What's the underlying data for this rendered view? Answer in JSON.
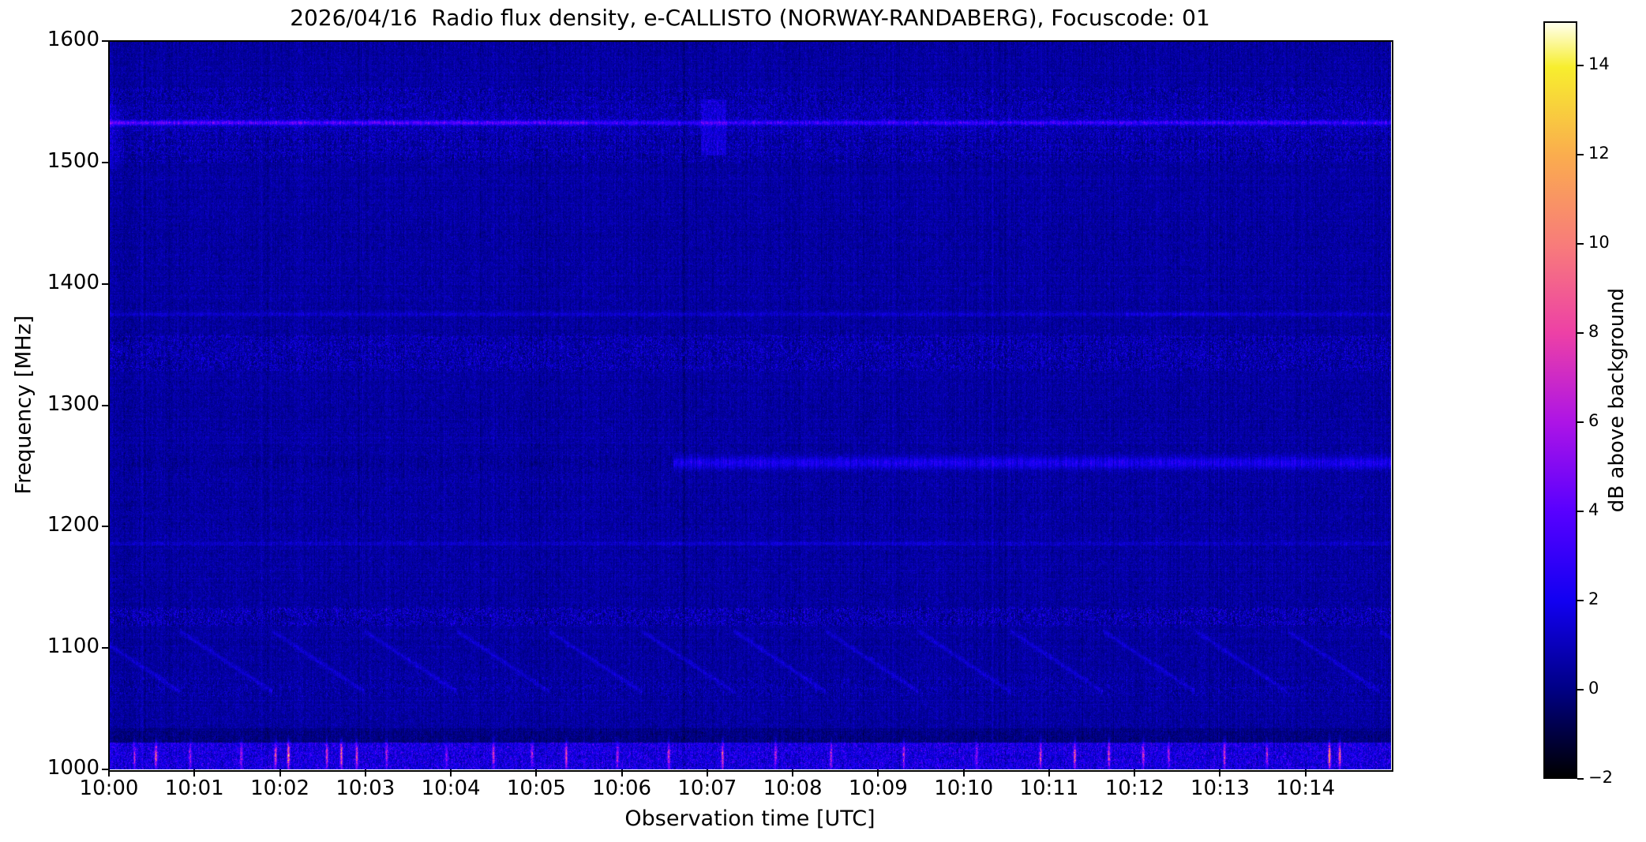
{
  "chart_data": {
    "type": "heatmap",
    "title": "2026/04/16  Radio flux density, e-CALLISTO (NORWAY-RANDABERG), Focuscode: 01",
    "xlabel": "Observation time [UTC]",
    "ylabel": "Frequency [MHz]",
    "colorbar_label": "dB above background",
    "x_tick_labels": [
      "10:00",
      "10:01",
      "10:02",
      "10:03",
      "10:04",
      "10:05",
      "10:06",
      "10:07",
      "10:08",
      "10:09",
      "10:10",
      "10:11",
      "10:12",
      "10:13",
      "10:14"
    ],
    "x_tick_minutes": [
      0,
      1,
      2,
      3,
      4,
      5,
      6,
      7,
      8,
      9,
      10,
      11,
      12,
      13,
      14
    ],
    "x_range_minutes": [
      0,
      15
    ],
    "y_tick_labels": [
      "1600",
      "1500",
      "1400",
      "1300",
      "1200",
      "1100",
      "1000"
    ],
    "y_tick_values": [
      1600,
      1500,
      1400,
      1300,
      1200,
      1100,
      1000
    ],
    "y_range_mhz": [
      1000,
      1600
    ],
    "value_range_db": [
      -2,
      15
    ],
    "colorbar_tick_labels": [
      "14",
      "12",
      "10",
      "8",
      "6",
      "4",
      "2",
      "0",
      "−2"
    ],
    "colorbar_tick_values": [
      14,
      12,
      10,
      8,
      6,
      4,
      2,
      0,
      -2
    ],
    "colormap_stops": [
      {
        "value": -2,
        "rgb": [
          0,
          0,
          0
        ]
      },
      {
        "value": 0,
        "rgb": [
          0,
          0,
          134
        ]
      },
      {
        "value": 2,
        "rgb": [
          18,
          0,
          242
        ]
      },
      {
        "value": 4,
        "rgb": [
          88,
          0,
          255
        ]
      },
      {
        "value": 6,
        "rgb": [
          173,
          20,
          230
        ]
      },
      {
        "value": 8,
        "rgb": [
          237,
          64,
          166
        ]
      },
      {
        "value": 10,
        "rgb": [
          248,
          124,
          122
        ]
      },
      {
        "value": 12,
        "rgb": [
          250,
          172,
          78
        ]
      },
      {
        "value": 14,
        "rgb": [
          247,
          238,
          46
        ]
      },
      {
        "value": 15,
        "rgb": [
          255,
          255,
          236
        ]
      }
    ],
    "base_level_db": 0.32,
    "noise_bands": [
      {
        "freq": [
          1500,
          1562
        ],
        "speckle": 1.8,
        "add": 0
      },
      {
        "freq": [
          1520,
          1546
        ],
        "speckle": 1.0,
        "add": 0.12
      },
      {
        "freq": [
          1328,
          1358
        ],
        "speckle": 2.0,
        "add": 0
      },
      {
        "freq": [
          1118,
          1133
        ],
        "speckle": 2.3,
        "add": 0
      },
      {
        "freq": [
          1060,
          1076
        ],
        "speckle": 1.4,
        "add": 0
      },
      {
        "freq": [
          1022,
          1034
        ],
        "speckle": 1.0,
        "add": -0.5
      },
      {
        "freq": [
          1000,
          1022
        ],
        "speckle": 2.6,
        "add": 1.0
      }
    ],
    "features": [
      {
        "type": "hline_split",
        "freq": 1532.6,
        "sigma": 1.4,
        "window": 5,
        "t_split": 5.6,
        "amp_before": 3.1,
        "amp_after": 2.25,
        "flicker": [
          0.65,
          0.7
        ]
      },
      {
        "type": "hline",
        "freq": 1375,
        "sigma": 1.2,
        "window": 3.5,
        "amp": 0.8,
        "flicker": [
          0.55,
          0.9
        ],
        "boost_t": [
          11.9,
          13.15
        ],
        "boost_amp": 0.8
      },
      {
        "type": "hline",
        "freq": 1186,
        "sigma": 1.1,
        "window": 3,
        "amp": 0.7,
        "flicker": [
          0.5,
          0.9
        ],
        "boost_t": [
          6.4,
          9.9
        ],
        "boost_amp": 0.3
      },
      {
        "type": "split_band",
        "freq": 1252.5,
        "sigma": 3.5,
        "window": 8,
        "t_split": 6.6,
        "amp_left": -0.45,
        "mottle_left": 0.55,
        "amp_right": 1.9,
        "flicker_right": [
          0.45,
          0.75
        ]
      },
      {
        "type": "chevrons",
        "f_start": 1114,
        "f_end": 1064,
        "period_min": 1.08,
        "t_offset": 0.25,
        "sigma": 1.5,
        "amp": 1.0
      },
      {
        "type": "blob",
        "t": [
          6.93,
          7.22
        ],
        "freq": [
          1506,
          1552
        ],
        "amp": -0.85
      },
      {
        "type": "vline",
        "t": 6.72,
        "halfwidth": 0.018,
        "amp": -0.5
      },
      {
        "type": "edge_bright",
        "t_end": 0.2,
        "freq": [
          1495,
          1548
        ],
        "amp": 0.85
      }
    ],
    "rfi_band": {
      "freq_center": 1011,
      "freq_window": [
        998,
        1028
      ],
      "sigma": 10,
      "time_halfwidth": 0.014
    },
    "rfi_spikes": [
      {
        "t": 0.3,
        "amp": 6
      },
      {
        "t": 0.55,
        "amp": 9
      },
      {
        "t": 0.95,
        "amp": 5
      },
      {
        "t": 1.55,
        "amp": 6
      },
      {
        "t": 1.95,
        "amp": 8
      },
      {
        "t": 2.1,
        "amp": 12
      },
      {
        "t": 2.55,
        "amp": 7
      },
      {
        "t": 2.72,
        "amp": 10
      },
      {
        "t": 2.9,
        "amp": 9
      },
      {
        "t": 3.25,
        "amp": 6
      },
      {
        "t": 3.95,
        "amp": 5
      },
      {
        "t": 4.5,
        "amp": 7
      },
      {
        "t": 4.95,
        "amp": 6
      },
      {
        "t": 5.35,
        "amp": 8
      },
      {
        "t": 5.95,
        "amp": 6
      },
      {
        "t": 6.55,
        "amp": 7
      },
      {
        "t": 7.18,
        "amp": 9
      },
      {
        "t": 7.8,
        "amp": 6
      },
      {
        "t": 8.45,
        "amp": 7
      },
      {
        "t": 9.3,
        "amp": 6
      },
      {
        "t": 10.15,
        "amp": 5
      },
      {
        "t": 10.9,
        "amp": 7
      },
      {
        "t": 11.3,
        "amp": 9
      },
      {
        "t": 11.7,
        "amp": 8
      },
      {
        "t": 12.1,
        "amp": 7
      },
      {
        "t": 12.4,
        "amp": 6
      },
      {
        "t": 13.05,
        "amp": 8
      },
      {
        "t": 13.55,
        "amp": 6
      },
      {
        "t": 14.28,
        "amp": 11
      },
      {
        "t": 14.4,
        "amp": 9
      }
    ]
  }
}
